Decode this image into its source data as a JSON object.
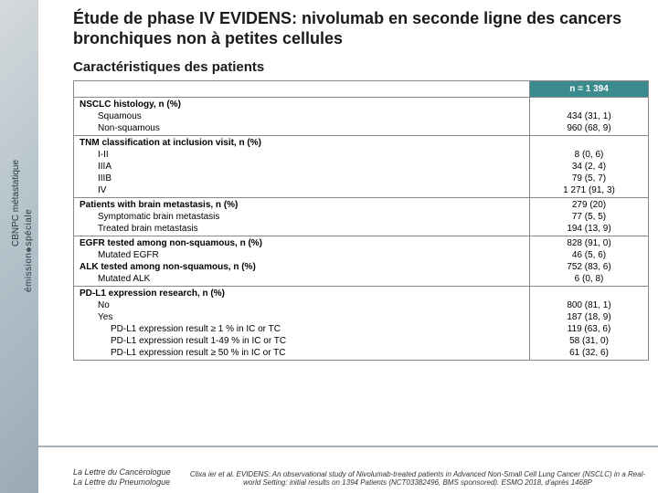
{
  "sidebar": {
    "line1": "CBNPC métastatique",
    "brand_a": "émission",
    "brand_b": "spéciale"
  },
  "title": "Étude de phase IV EVIDENS: nivolumab en seconde ligne des cancers bronchiques non à petites cellules",
  "subtitle": "Caractéristiques des patients",
  "table": {
    "header_value": "n = 1 394",
    "sections": [
      {
        "rows": [
          {
            "label": "NSCLC histology, n (%)",
            "bold": true,
            "indent": 0,
            "value": ""
          },
          {
            "label": "Squamous",
            "bold": false,
            "indent": 1,
            "value": "434 (31, 1)"
          },
          {
            "label": "Non-squamous",
            "bold": false,
            "indent": 1,
            "value": "960 (68, 9)"
          }
        ]
      },
      {
        "rows": [
          {
            "label": "TNM classification at inclusion visit, n (%)",
            "bold": true,
            "indent": 0,
            "value": ""
          },
          {
            "label": "I-II",
            "bold": false,
            "indent": 1,
            "value": "8 (0, 6)"
          },
          {
            "label": "IIIA",
            "bold": false,
            "indent": 1,
            "value": "34 (2, 4)"
          },
          {
            "label": "IIIB",
            "bold": false,
            "indent": 1,
            "value": "79 (5, 7)"
          },
          {
            "label": "IV",
            "bold": false,
            "indent": 1,
            "value": "1 271 (91, 3)"
          }
        ]
      },
      {
        "rows": [
          {
            "label": "Patients with brain metastasis, n (%)",
            "bold": true,
            "indent": 0,
            "value": "279 (20)"
          },
          {
            "label": "Symptomatic brain metastasis",
            "bold": false,
            "indent": 1,
            "value": "77 (5, 5)"
          },
          {
            "label": "Treated brain metastasis",
            "bold": false,
            "indent": 1,
            "value": "194 (13, 9)"
          }
        ]
      },
      {
        "rows": [
          {
            "label": "EGFR tested among non-squamous, n (%)",
            "bold": true,
            "indent": 0,
            "value": "828 (91, 0)"
          },
          {
            "label": "Mutated EGFR",
            "bold": false,
            "indent": 1,
            "value": "46 (5, 6)"
          },
          {
            "label": "ALK tested among non-squamous, n (%)",
            "bold": true,
            "indent": 0,
            "value": "752 (83, 6)"
          },
          {
            "label": "Mutated ALK",
            "bold": false,
            "indent": 1,
            "value": "6 (0, 8)"
          }
        ]
      },
      {
        "rows": [
          {
            "label": "PD-L1 expression research, n (%)",
            "bold": true,
            "indent": 0,
            "value": ""
          },
          {
            "label": "No",
            "bold": false,
            "indent": 1,
            "value": "800 (81, 1)"
          },
          {
            "label": "Yes",
            "bold": false,
            "indent": 1,
            "value": "187 (18, 9)"
          },
          {
            "label": "PD-L1 expression result ≥ 1 % in IC or TC",
            "bold": false,
            "indent": 2,
            "value": "119 (63, 6)"
          },
          {
            "label": "PD-L1 expression result 1-49 % in IC or TC",
            "bold": false,
            "indent": 2,
            "value": "58 (31, 0)"
          },
          {
            "label": "PD-L1 expression result ≥ 50 % in IC or TC",
            "bold": false,
            "indent": 2,
            "value": "61 (32, 6)"
          }
        ]
      }
    ]
  },
  "footer": {
    "left1": "La Lettre du Cancérologue",
    "left2": "La Lettre du Pneumologue",
    "right": "Clixa ier et al. EVIDENS: An observational study of Nivolumab-treated patients in Advanced Non-Small Cell Lung Cancer (NSCLC) in a Real-world Setting: initial results on 1394 Patients (NCT03382496, BMS sponsored). ESMO 2018, d'après 1468P"
  }
}
